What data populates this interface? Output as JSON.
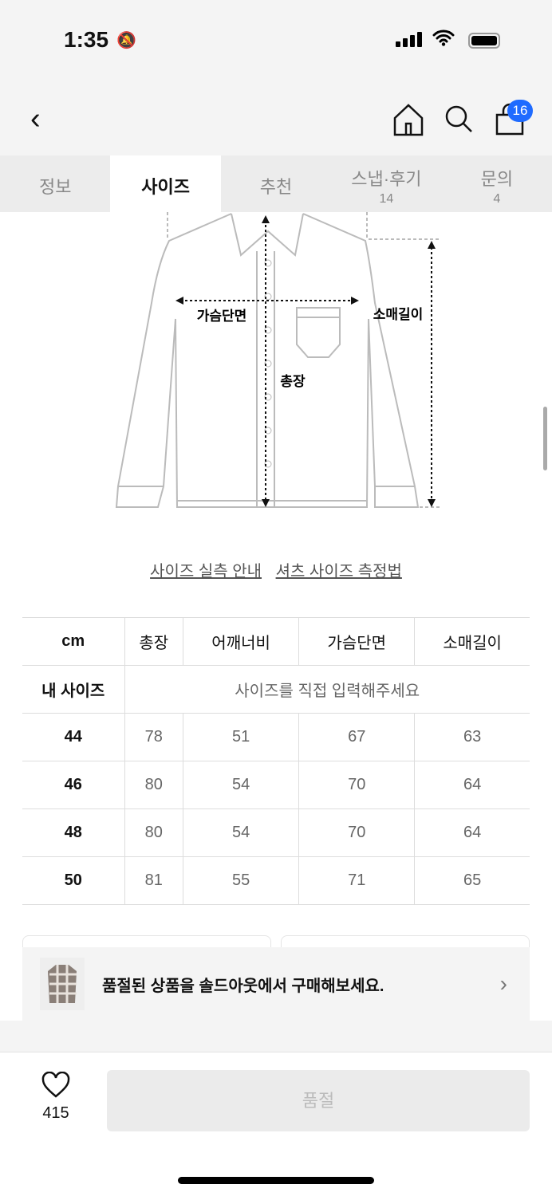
{
  "status_bar": {
    "time": "1:35"
  },
  "header": {
    "cart_count": "16",
    "badge_color": "#1f6bff"
  },
  "tabs": [
    {
      "label": "정보"
    },
    {
      "label": "사이즈"
    },
    {
      "label": "추천"
    },
    {
      "label": "스냅·후기",
      "count": "14"
    },
    {
      "label": "문의",
      "count": "4"
    }
  ],
  "diagram": {
    "chest": "가슴단면",
    "length": "총장",
    "sleeve": "소매길이"
  },
  "links": {
    "guide": "사이즈 실측 안내",
    "method": "셔츠 사이즈 측정법"
  },
  "size_table": {
    "headers": [
      "cm",
      "총장",
      "어깨너비",
      "가슴단면",
      "소매길이"
    ],
    "my_size_label": "내 사이즈",
    "my_size_placeholder": "사이즈를 직접 입력해주세요",
    "rows": [
      [
        "44",
        "78",
        "51",
        "67",
        "63"
      ],
      [
        "46",
        "80",
        "54",
        "70",
        "64"
      ],
      [
        "48",
        "80",
        "54",
        "70",
        "64"
      ],
      [
        "50",
        "81",
        "55",
        "71",
        "65"
      ]
    ]
  },
  "banner": {
    "text": "품절된 상품을 솔드아웃에서 구매해보세요."
  },
  "bottom": {
    "likes": "415",
    "buy_label": "품절"
  }
}
